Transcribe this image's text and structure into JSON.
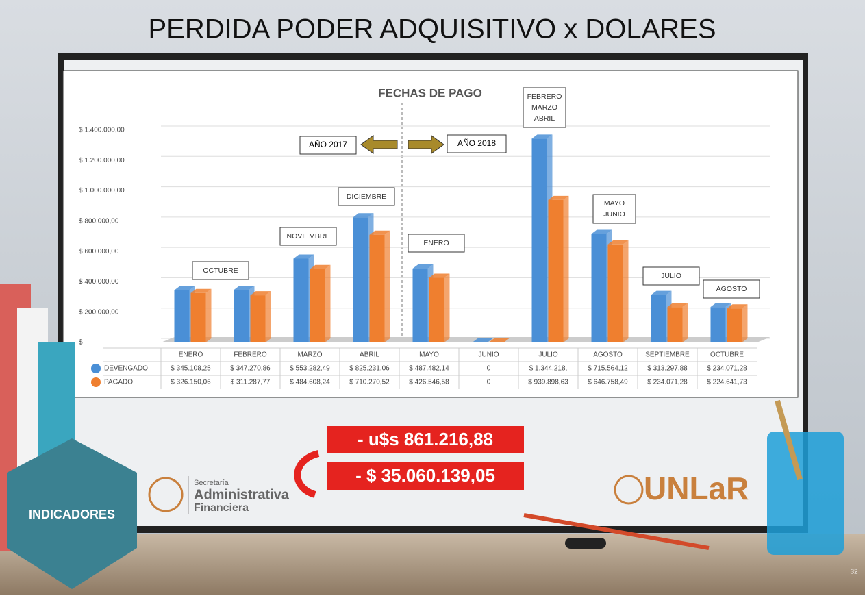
{
  "slide": {
    "title": "PERDIDA PODER ADQUISITIVO x DOLARES",
    "loss_usd": "- u$s 861.216,88",
    "loss_ars": "- $ 35.060.139,05",
    "section": "INDICADORES",
    "logo_left": [
      "Secretaría",
      "Administrativa",
      "Financiera"
    ],
    "logo_right": "UNLaR",
    "page_number": "32"
  },
  "chart_data": {
    "type": "bar",
    "title": "FECHAS DE PAGO",
    "categories": [
      "ENERO",
      "FEBRERO",
      "MARZO",
      "ABRIL",
      "MAYO",
      "JUNIO",
      "JULIO",
      "AGOSTO",
      "SEPTIEMBRE",
      "OCTUBRE"
    ],
    "series": [
      {
        "name": "DEVENGADO",
        "color": "#4a8fd6",
        "values": [
          345108.25,
          347270.86,
          553282.49,
          825231.06,
          487482.14,
          0,
          1344218,
          715564.12,
          313297.88,
          234071.28
        ],
        "value_labels": [
          "$ 345.108,25",
          "$ 347.270,86",
          "$ 553.282,49",
          "$ 825.231,06",
          "$ 487.482,14",
          "0",
          "$ 1.344.218,",
          "$ 715.564,12",
          "$ 313.297,88",
          "$ 234.071,28"
        ]
      },
      {
        "name": "PAGADO",
        "color": "#ef7f2f",
        "values": [
          326150.06,
          311287.77,
          484608.24,
          710270.52,
          426546.58,
          0,
          939898.63,
          646758.49,
          234071.28,
          224641.73
        ],
        "value_labels": [
          "$ 326.150,06",
          "$ 311.287,77",
          "$ 484.608,24",
          "$ 710.270,52",
          "$ 426.546,58",
          "0",
          "$ 939.898,63",
          "$ 646.758,49",
          "$ 234.071,28",
          "$ 224.641,73"
        ]
      }
    ],
    "ylim": [
      0,
      1400000
    ],
    "yticks": [
      {
        "value": 0,
        "label": "$ -"
      },
      {
        "value": 200000,
        "label": "$ 200.000,00"
      },
      {
        "value": 400000,
        "label": "$ 400.000,00"
      },
      {
        "value": 600000,
        "label": "$ 600.000,00"
      },
      {
        "value": 800000,
        "label": "$ 800.000,00"
      },
      {
        "value": 1000000,
        "label": "$ 1.000.000,00"
      },
      {
        "value": 1200000,
        "label": "$ 1.200.000,00"
      },
      {
        "value": 1400000,
        "label": "$ 1.400.000,00"
      }
    ],
    "grid": true,
    "annotations": [
      [
        "OCTUBRE"
      ],
      [
        "NOVIEMBRE"
      ],
      [
        "DICIEMBRE"
      ],
      [
        "ENERO"
      ],
      [
        "FEBRERO",
        "MARZO",
        "ABRIL"
      ],
      [
        "MAYO",
        "JUNIO"
      ],
      [
        "JULIO"
      ],
      [
        "AGOSTO"
      ]
    ],
    "year_labels": [
      "AÑO 2017",
      "AÑO 2018"
    ]
  }
}
